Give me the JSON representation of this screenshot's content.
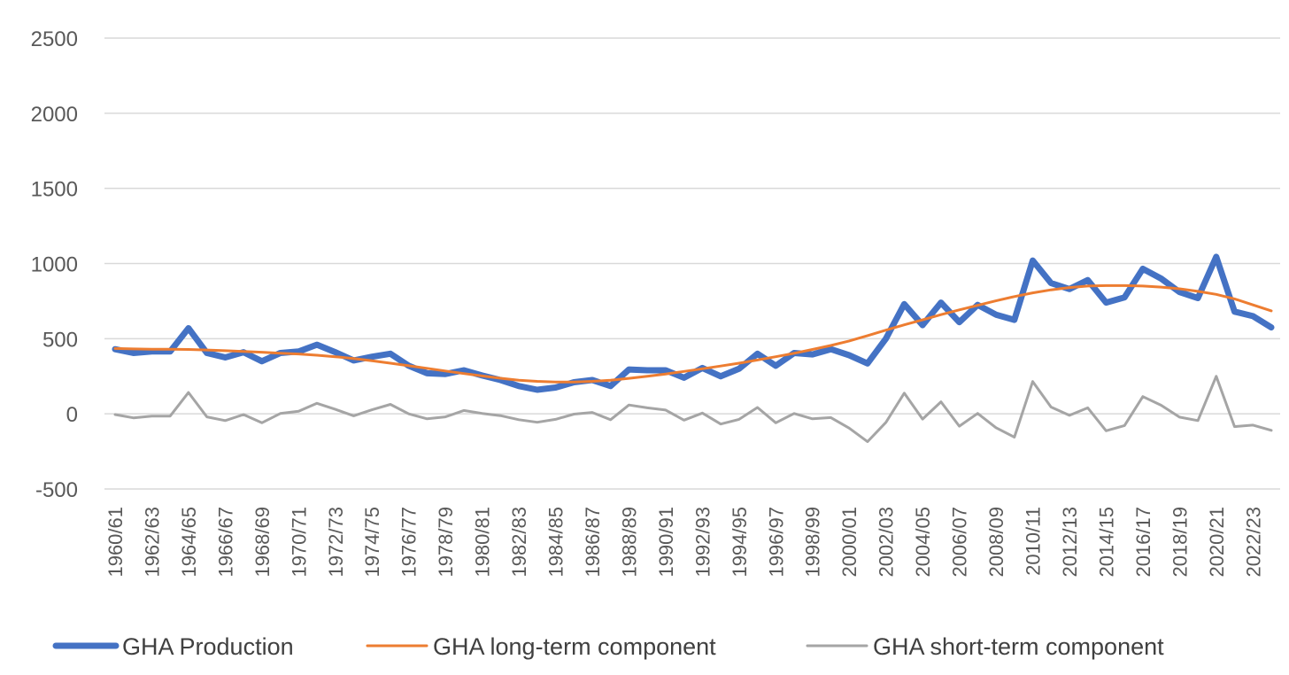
{
  "chart_data": {
    "type": "line",
    "title": "",
    "xlabel": "",
    "ylabel": "",
    "ylim": [
      -500,
      2500
    ],
    "yticks": [
      -500,
      0,
      500,
      1000,
      1500,
      2000,
      2500
    ],
    "grid": true,
    "legend": "bottom",
    "categories": [
      "1960/61",
      "1961/62",
      "1962/63",
      "1963/64",
      "1964/65",
      "1965/66",
      "1966/67",
      "1967/68",
      "1968/69",
      "1969/70",
      "1970/71",
      "1971/72",
      "1972/73",
      "1973/74",
      "1974/75",
      "1975/76",
      "1976/77",
      "1977/78",
      "1978/79",
      "1979/80",
      "1980/81",
      "1981/82",
      "1982/83",
      "1983/84",
      "1984/85",
      "1985/86",
      "1986/87",
      "1987/88",
      "1988/89",
      "1989/90",
      "1990/91",
      "1991/92",
      "1992/93",
      "1993/94",
      "1994/95",
      "1995/96",
      "1996/97",
      "1997/98",
      "1998/99",
      "1999/00",
      "2000/01",
      "2001/02",
      "2002/03",
      "2003/04",
      "2004/05",
      "2005/06",
      "2006/07",
      "2007/08",
      "2008/09",
      "2009/10",
      "2010/11",
      "2011/12",
      "2012/13",
      "2013/14",
      "2014/15",
      "2015/16",
      "2016/17",
      "2017/18",
      "2018/19",
      "2019/20",
      "2020/21",
      "2021/22",
      "2022/23",
      "2023/24"
    ],
    "xtick_labels": [
      "1960/61",
      "1962/63",
      "1964/65",
      "1966/67",
      "1968/69",
      "1970/71",
      "1972/73",
      "1974/75",
      "1976/77",
      "1978/79",
      "1980/81",
      "1982/83",
      "1984/85",
      "1986/87",
      "1988/89",
      "1990/91",
      "1992/93",
      "1994/95",
      "1996/97",
      "1998/99",
      "2000/01",
      "2002/03",
      "2004/05",
      "2006/07",
      "2008/09",
      "2010/11",
      "2012/13",
      "2014/15",
      "2016/17",
      "2018/19",
      "2020/21",
      "2022/23"
    ],
    "series": [
      {
        "name": "GHA Production",
        "color": "#4472c4",
        "values": [
          430,
          405,
          415,
          415,
          570,
          405,
          375,
          410,
          350,
          405,
          415,
          460,
          410,
          355,
          380,
          400,
          320,
          270,
          265,
          290,
          255,
          225,
          185,
          160,
          175,
          210,
          225,
          185,
          295,
          290,
          290,
          240,
          305,
          250,
          300,
          400,
          320,
          405,
          395,
          430,
          390,
          335,
          500,
          730,
          590,
          740,
          610,
          725,
          660,
          625,
          1020,
          870,
          830,
          890,
          740,
          775,
          965,
          900,
          810,
          770,
          1045,
          680,
          650,
          575
        ]
      },
      {
        "name": "GHA long-term component",
        "color": "#ed7d31",
        "values": [
          435,
          432,
          430,
          430,
          428,
          425,
          420,
          415,
          410,
          403,
          398,
          390,
          380,
          368,
          353,
          337,
          320,
          303,
          285,
          268,
          252,
          237,
          224,
          216,
          212,
          212,
          216,
          224,
          236,
          250,
          265,
          282,
          300,
          318,
          337,
          358,
          380,
          403,
          428,
          455,
          485,
          520,
          557,
          592,
          625,
          660,
          692,
          722,
          752,
          780,
          805,
          825,
          840,
          850,
          853,
          853,
          850,
          843,
          832,
          815,
          795,
          765,
          725,
          685
        ]
      },
      {
        "name": "GHA short-term component",
        "color": "#a5a5a5",
        "values": [
          -5,
          -27,
          -15,
          -15,
          142,
          -20,
          -45,
          -5,
          -60,
          2,
          17,
          70,
          30,
          -13,
          27,
          63,
          0,
          -33,
          -20,
          22,
          3,
          -12,
          -39,
          -56,
          -37,
          -2,
          9,
          -39,
          59,
          40,
          25,
          -42,
          5,
          -68,
          -37,
          42,
          -60,
          2,
          -33,
          -25,
          -95,
          -185,
          -57,
          138,
          -35,
          80,
          -82,
          3,
          -92,
          -155,
          215,
          45,
          -10,
          40,
          -113,
          -78,
          115,
          57,
          -22,
          -45,
          250,
          -85,
          -75,
          -110
        ]
      }
    ]
  }
}
